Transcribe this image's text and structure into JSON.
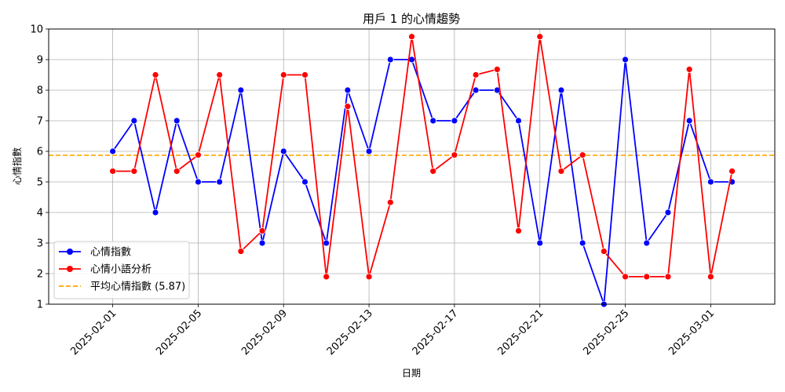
{
  "chart_data": {
    "type": "line",
    "title": "用戶 1 的心情趨勢",
    "xlabel": "日期",
    "ylabel": "心情指數",
    "ylim": [
      1,
      10
    ],
    "xlim": [
      "2025-01-29",
      "2025-03-04"
    ],
    "y_ticks": [
      1,
      2,
      3,
      4,
      5,
      6,
      7,
      8,
      9,
      10
    ],
    "x_tick_dates": [
      "2025-02-01",
      "2025-02-05",
      "2025-02-09",
      "2025-02-13",
      "2025-02-17",
      "2025-02-21",
      "2025-02-25",
      "2025-03-01"
    ],
    "x_tick_labels": [
      "2025-02-01",
      "2025-02-05",
      "2025-02-09",
      "2025-02-13",
      "2025-02-17",
      "2025-02-21",
      "2025-02-25",
      "2025-03-01"
    ],
    "grid": true,
    "legend_position": "bottom-left",
    "dates": [
      "2025-02-01",
      "2025-02-02",
      "2025-02-03",
      "2025-02-04",
      "2025-02-05",
      "2025-02-06",
      "2025-02-07",
      "2025-02-08",
      "2025-02-09",
      "2025-02-10",
      "2025-02-11",
      "2025-02-12",
      "2025-02-13",
      "2025-02-14",
      "2025-02-15",
      "2025-02-16",
      "2025-02-17",
      "2025-02-18",
      "2025-02-19",
      "2025-02-20",
      "2025-02-21",
      "2025-02-22",
      "2025-02-23",
      "2025-02-24",
      "2025-02-25",
      "2025-02-26",
      "2025-02-27",
      "2025-02-28",
      "2025-03-01",
      "2025-03-02"
    ],
    "series": [
      {
        "name": "心情指數",
        "color": "#0000ff",
        "line_style": "solid",
        "values": [
          6,
          7,
          4,
          7,
          5,
          5,
          8,
          3,
          6,
          5,
          3,
          8,
          6,
          9,
          9,
          7,
          7,
          8,
          8,
          7,
          3,
          8,
          3,
          1,
          9,
          3,
          4,
          7,
          5,
          5
        ]
      },
      {
        "name": "心情小語分析",
        "color": "#ff0000",
        "line_style": "solid",
        "values": [
          5.35,
          5.35,
          8.5,
          5.35,
          5.88,
          8.5,
          2.73,
          3.4,
          8.5,
          8.5,
          1.9,
          7.47,
          1.9,
          4.33,
          9.75,
          5.35,
          5.88,
          8.5,
          8.68,
          3.4,
          9.75,
          5.35,
          5.88,
          2.73,
          1.9,
          1.9,
          1.9,
          8.68,
          1.9,
          5.35
        ]
      }
    ],
    "reference_line": {
      "label": "平均心情指數 (5.87)",
      "value": 5.87,
      "color": "#ffa500",
      "line_style": "dashed"
    }
  }
}
